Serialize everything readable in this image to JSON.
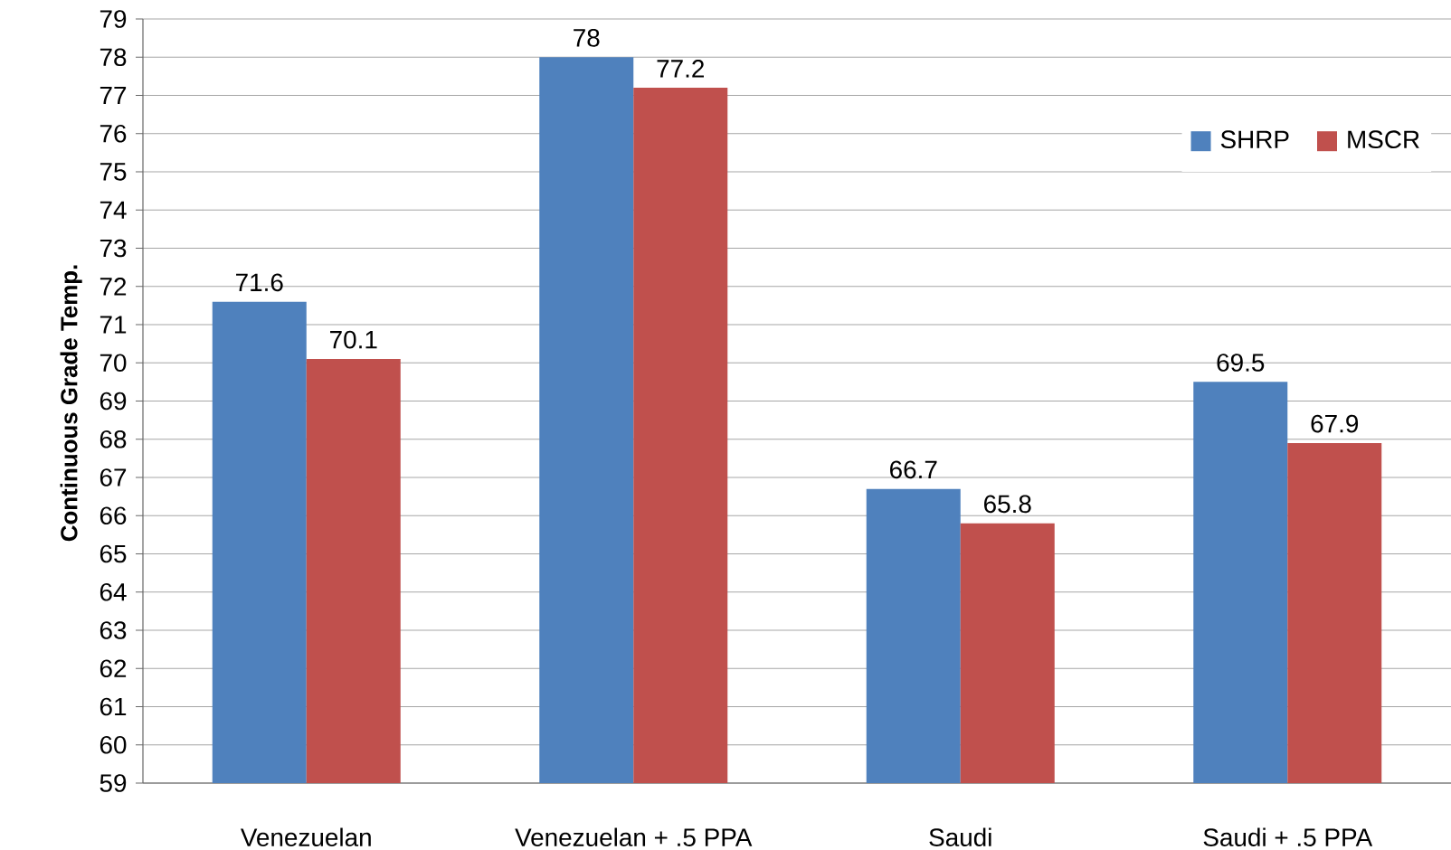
{
  "chart_data": {
    "type": "bar",
    "ylabel": "Continuous  Grade Temp.",
    "categories": [
      "Venezuelan",
      "Venezuelan + .5 PPA",
      "Saudi",
      "Saudi + .5 PPA"
    ],
    "series": [
      {
        "name": "SHRP",
        "color": "#4f81bd",
        "values": [
          71.6,
          78,
          66.7,
          69.5
        ]
      },
      {
        "name": "MSCR",
        "color": "#c0504d",
        "values": [
          70.1,
          77.2,
          65.8,
          67.9
        ]
      }
    ],
    "ylim": [
      59,
      79
    ],
    "yticks": [
      59,
      60,
      61,
      62,
      63,
      64,
      65,
      66,
      67,
      68,
      69,
      70,
      71,
      72,
      73,
      74,
      75,
      76,
      77,
      78,
      79
    ],
    "grid": "y",
    "legend": "top right",
    "data_labels": true
  }
}
